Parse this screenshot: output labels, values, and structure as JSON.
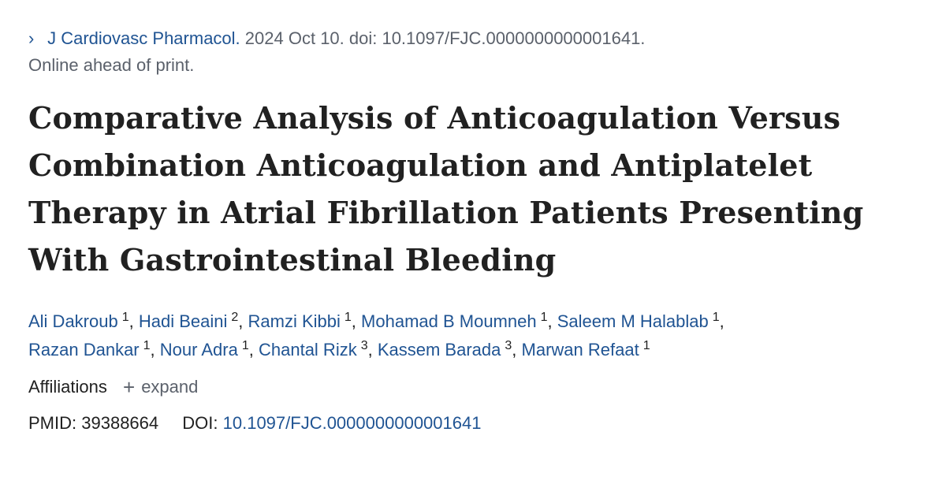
{
  "citation": {
    "journal": "J Cardiovasc Pharmacol.",
    "details": "2024 Oct 10. doi: 10.1097/FJC.0000000000001641.",
    "status": "Online ahead of print."
  },
  "title": "Comparative Analysis of Anticoagulation Versus Combination Anticoagulation and Antiplatelet Therapy in Atrial Fibrillation Patients Presenting With Gastrointestinal Bleeding",
  "authors": [
    {
      "name": "Ali Dakroub",
      "aff": "1"
    },
    {
      "name": "Hadi Beaini",
      "aff": "2"
    },
    {
      "name": "Ramzi Kibbi",
      "aff": "1"
    },
    {
      "name": "Mohamad B Moumneh",
      "aff": "1"
    },
    {
      "name": "Saleem M Halablab",
      "aff": "1"
    },
    {
      "name": "Razan Dankar",
      "aff": "1"
    },
    {
      "name": "Nour Adra",
      "aff": "1"
    },
    {
      "name": "Chantal Rizk",
      "aff": "3"
    },
    {
      "name": "Kassem Barada",
      "aff": "3"
    },
    {
      "name": "Marwan Refaat",
      "aff": "1"
    }
  ],
  "affiliations": {
    "label": "Affiliations",
    "expand_label": "expand"
  },
  "identifiers": {
    "pmid_label": "PMID:",
    "pmid": "39388664",
    "doi_label": "DOI:",
    "doi": "10.1097/FJC.0000000000001641"
  },
  "colors": {
    "link": "#205493",
    "text": "#212121",
    "muted": "#5b616b"
  },
  "icons": {
    "citation": "chevron-right-icon",
    "expand": "plus-icon"
  }
}
